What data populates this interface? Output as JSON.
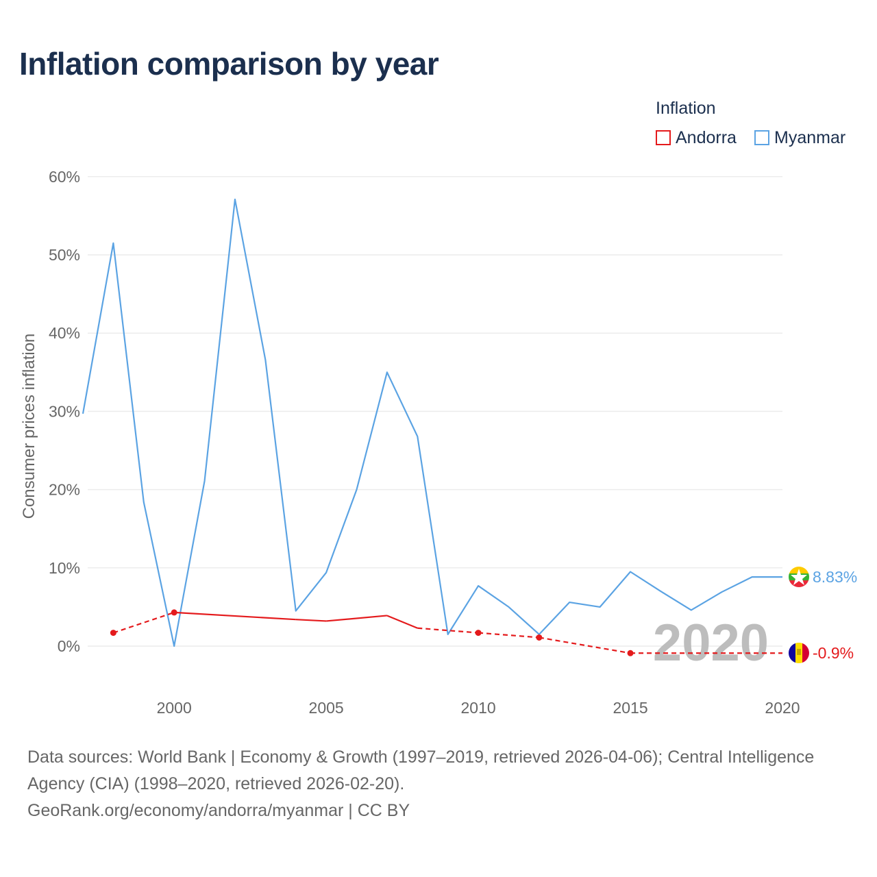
{
  "title": "Inflation comparison by year",
  "legend": {
    "title": "Inflation",
    "items": [
      {
        "label": "Andorra",
        "color": "#e41a1c"
      },
      {
        "label": "Myanmar",
        "color": "#5ba3e3"
      }
    ]
  },
  "chart_data": {
    "type": "line",
    "ylabel": "Consumer prices inflation",
    "xlabel": "",
    "xlim": [
      1997,
      2020
    ],
    "ylim": [
      -6,
      60
    ],
    "x_ticks": [
      2000,
      2005,
      2010,
      2015,
      2020
    ],
    "y_ticks": [
      0,
      10,
      20,
      30,
      40,
      50,
      60
    ],
    "y_tick_labels": [
      "0%",
      "10%",
      "20%",
      "30%",
      "40%",
      "50%",
      "60%"
    ],
    "year_watermark": "2020",
    "series": [
      {
        "name": "Myanmar",
        "color": "#5ba3e3",
        "end_label": "8.83%",
        "points": [
          [
            1997,
            29.7
          ],
          [
            1998,
            51.5
          ],
          [
            1999,
            18.4
          ],
          [
            2000,
            0.0
          ],
          [
            2001,
            21.1
          ],
          [
            2002,
            57.1
          ],
          [
            2003,
            36.6
          ],
          [
            2004,
            4.5
          ],
          [
            2005,
            9.4
          ],
          [
            2006,
            20.0
          ],
          [
            2007,
            35.0
          ],
          [
            2008,
            26.8
          ],
          [
            2009,
            1.5
          ],
          [
            2010,
            7.7
          ],
          [
            2011,
            5.0
          ],
          [
            2012,
            1.5
          ],
          [
            2013,
            5.6
          ],
          [
            2014,
            5.0
          ],
          [
            2015,
            9.5
          ],
          [
            2016,
            7.0
          ],
          [
            2017,
            4.6
          ],
          [
            2018,
            6.9
          ],
          [
            2019,
            8.83
          ],
          [
            2020,
            8.83
          ]
        ]
      },
      {
        "name": "Andorra",
        "color": "#e41a1c",
        "end_label": "-0.9%",
        "points": [
          [
            1998,
            1.7
          ],
          [
            2000,
            4.3
          ],
          [
            2004,
            3.4
          ],
          [
            2005,
            3.2
          ],
          [
            2007,
            3.9
          ],
          [
            2008,
            2.3
          ],
          [
            2010,
            1.7
          ],
          [
            2012,
            1.1
          ],
          [
            2015,
            -0.9
          ],
          [
            2020,
            -0.9
          ]
        ],
        "markers": [
          1998,
          2000,
          2010,
          2012,
          2015
        ],
        "solid_segments": [
          [
            2000,
            2008
          ],
          [
            2019,
            2020
          ]
        ]
      }
    ]
  },
  "footer": {
    "sources": "Data sources: World Bank | Economy & Growth (1997–2019, retrieved 2026-04-06); Central Intelligence Agency (CIA) (1998–2020, retrieved 2026-02-20).",
    "credit": "GeoRank.org/economy/andorra/myanmar | CC BY"
  }
}
